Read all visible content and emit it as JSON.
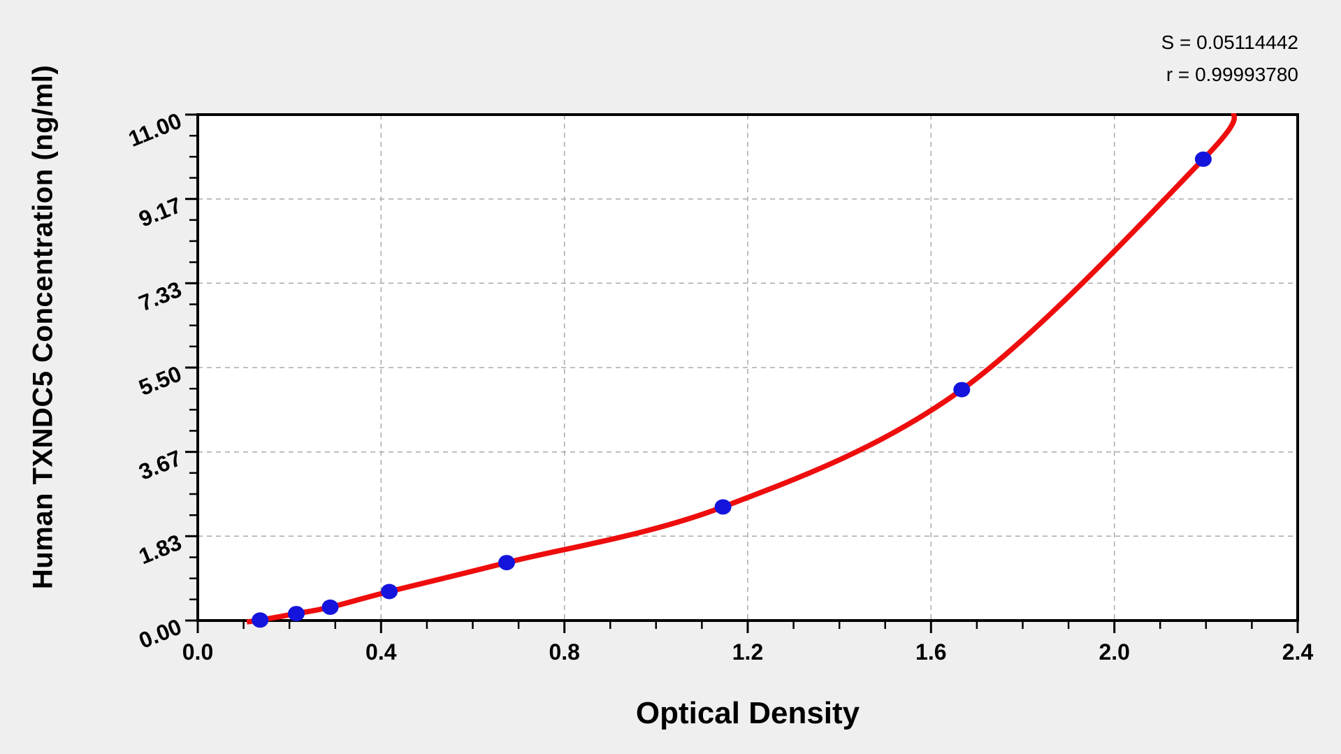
{
  "stats": {
    "s_label": "S = 0.05114442",
    "r_label": "r = 0.99993780"
  },
  "chart_data": {
    "type": "scatter",
    "title": "",
    "xlabel": "Optical Density",
    "ylabel": "Human TXNDC5 Concentration (ng/ml)",
    "xlim": [
      0,
      2.4
    ],
    "ylim": [
      0,
      11
    ],
    "grid": "dashed-at-major-ticks",
    "x_major_ticks": [
      {
        "value": 0.0,
        "label": "0.0"
      },
      {
        "value": 0.4,
        "label": "0.4"
      },
      {
        "value": 0.8,
        "label": "0.8"
      },
      {
        "value": 1.2,
        "label": "1.2"
      },
      {
        "value": 1.6,
        "label": "1.6"
      },
      {
        "value": 2.0,
        "label": "2.0"
      },
      {
        "value": 2.4,
        "label": "2.4"
      }
    ],
    "y_major_ticks": [
      {
        "value": 0.0,
        "label": "0.00"
      },
      {
        "value": 1.833333,
        "label": "1.83"
      },
      {
        "value": 3.666667,
        "label": "3.67"
      },
      {
        "value": 5.5,
        "label": "5.50"
      },
      {
        "value": 7.333333,
        "label": "7.33"
      },
      {
        "value": 9.166667,
        "label": "9.17"
      },
      {
        "value": 11.0,
        "label": "11.00"
      }
    ],
    "x_minor_divisions_per_major": 4,
    "y_minor_divisions_per_major": 4,
    "points": [
      {
        "od": 0.136,
        "conc": 0.01
      },
      {
        "od": 0.215,
        "conc": 0.15
      },
      {
        "od": 0.289,
        "conc": 0.29
      },
      {
        "od": 0.418,
        "conc": 0.63
      },
      {
        "od": 0.674,
        "conc": 1.26
      },
      {
        "od": 1.146,
        "conc": 2.47
      },
      {
        "od": 1.667,
        "conc": 5.02
      },
      {
        "od": 2.194,
        "conc": 10.03
      }
    ],
    "curve_nodes": [
      [
        0.107,
        -0.03
      ],
      [
        0.136,
        0.01
      ],
      [
        0.215,
        0.15
      ],
      [
        0.289,
        0.29
      ],
      [
        0.418,
        0.63
      ],
      [
        0.674,
        1.26
      ],
      [
        1.146,
        2.47
      ],
      [
        1.667,
        5.02
      ],
      [
        2.194,
        10.03
      ],
      [
        2.262,
        11.1
      ]
    ],
    "colors": {
      "figure_background": "#efefef",
      "plot_background": "#ffffff",
      "border": "#000000",
      "gridline": "#aaaaaa",
      "curve": "#ee0d0d",
      "point": "#1414dd",
      "text": "#000000"
    }
  }
}
